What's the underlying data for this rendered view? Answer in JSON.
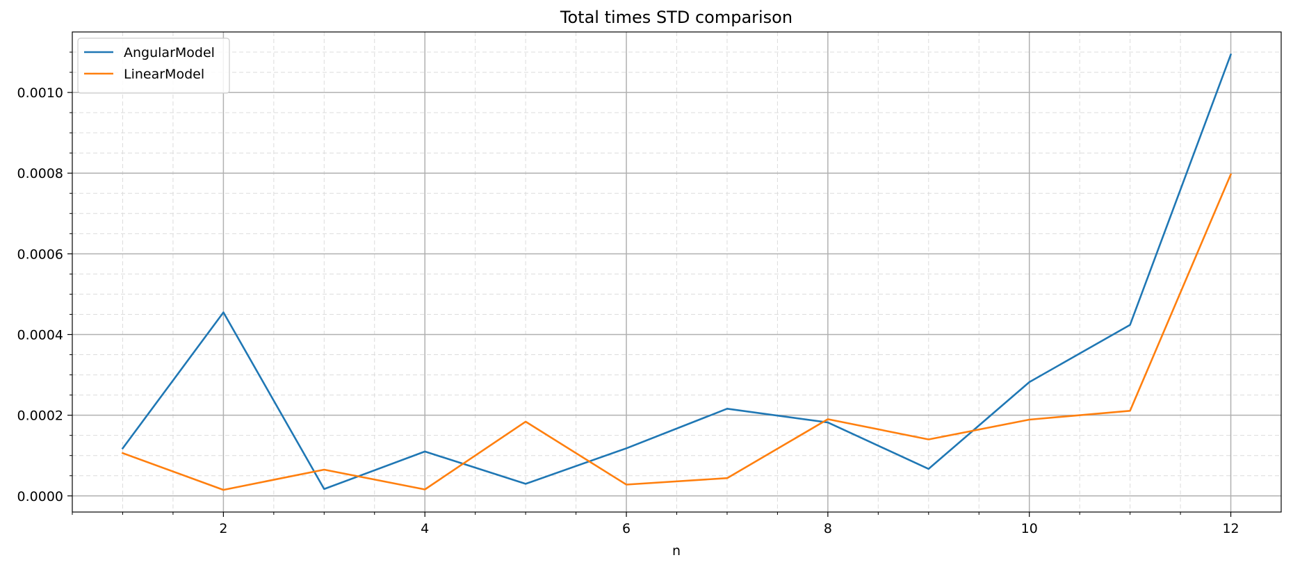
{
  "chart_data": {
    "type": "line",
    "title": "Total times STD comparison",
    "xlabel": "n",
    "ylabel": "",
    "xlim": [
      0.5,
      12.5
    ],
    "ylim": [
      -4e-05,
      0.00115
    ],
    "x_ticks": [
      2,
      4,
      6,
      8,
      10,
      12
    ],
    "x_tick_labels": [
      "2",
      "4",
      "6",
      "8",
      "10",
      "12"
    ],
    "y_ticks": [
      0.0,
      0.0002,
      0.0004,
      0.0006,
      0.0008,
      0.001
    ],
    "y_tick_labels": [
      "0.0000",
      "0.0002",
      "0.0004",
      "0.0006",
      "0.0008",
      "0.0010"
    ],
    "grid": true,
    "minor_grid": true,
    "legend_position": "top-left",
    "x": [
      1,
      2,
      3,
      4,
      5,
      6,
      7,
      8,
      9,
      10,
      11,
      12
    ],
    "series": [
      {
        "name": "AngularModel",
        "color": "#1f77b4",
        "values": [
          0.000118,
          0.000455,
          1.7e-05,
          0.00011,
          3e-05,
          0.000118,
          0.000216,
          0.000182,
          6.7e-05,
          0.000282,
          0.000424,
          0.001094
        ]
      },
      {
        "name": "LinearModel",
        "color": "#ff7f0e",
        "values": [
          0.000106,
          1.5e-05,
          6.5e-05,
          1.6e-05,
          0.000184,
          2.8e-05,
          4.4e-05,
          0.00019,
          0.00014,
          0.000189,
          0.000211,
          0.000797
        ]
      }
    ]
  }
}
